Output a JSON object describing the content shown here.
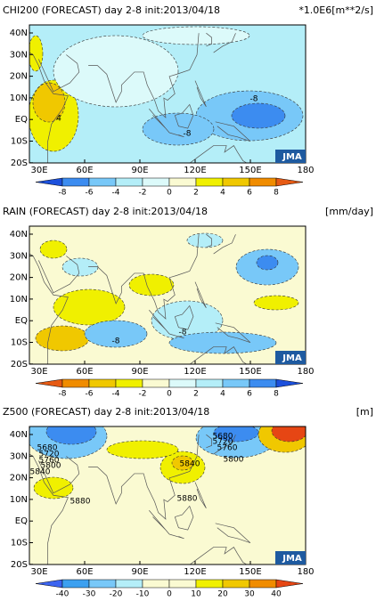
{
  "panels": [
    {
      "title": "CHI200 (FORECAST) day 2-8 init:2013/04/18",
      "units": "*1.0E6[m**2/s]",
      "lat_labels": [
        "40N",
        "30N",
        "20N",
        "10N",
        "EQ",
        "10S",
        "20S"
      ],
      "lon_labels": [
        "30E",
        "60E",
        "90E",
        "120E",
        "150E",
        "180"
      ],
      "logo": "JMA",
      "colorbar": [
        -8,
        -6,
        -4,
        -2,
        0,
        2,
        4,
        6,
        8
      ],
      "contour_labels": [
        "-8",
        "-8",
        "4"
      ]
    },
    {
      "title": "RAIN (FORECAST) day 2-8 init:2013/04/18",
      "units": "[mm/day]",
      "lat_labels": [
        "40N",
        "30N",
        "20N",
        "10N",
        "EQ",
        "10S",
        "20S"
      ],
      "lon_labels": [
        "30E",
        "60E",
        "90E",
        "120E",
        "150E",
        "180"
      ],
      "logo": "JMA",
      "colorbar": [
        -8,
        -6,
        -4,
        -2,
        0,
        2,
        4,
        6,
        8
      ],
      "contour_labels": [
        "-8",
        "-8"
      ]
    },
    {
      "title": "Z500 (FORECAST) day 2-8 init:2013/04/18",
      "units": "[m]",
      "lat_labels": [
        "40N",
        "30N",
        "20N",
        "10N",
        "EQ",
        "10S",
        "20S"
      ],
      "lon_labels": [
        "30E",
        "60E",
        "90E",
        "120E",
        "150E",
        "180"
      ],
      "logo": "JMA",
      "colorbar": [
        -40,
        -30,
        -20,
        -10,
        0,
        10,
        20,
        30,
        40
      ],
      "contour_labels": [
        "5680",
        "5720",
        "5760",
        "5800",
        "5840",
        "5880",
        "5840",
        "5880",
        "5680",
        "5720",
        "5760",
        "5800"
      ]
    }
  ]
}
